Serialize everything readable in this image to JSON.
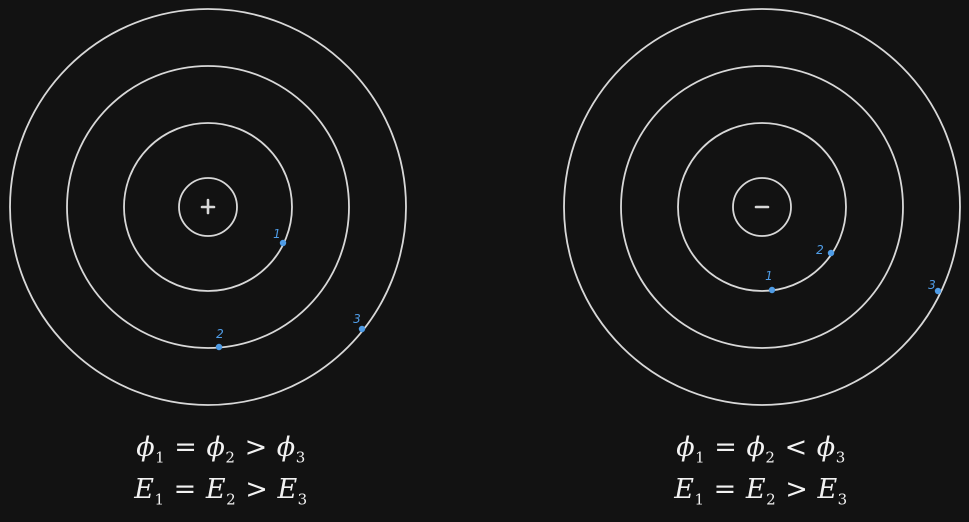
{
  "colors": {
    "background": "#121212",
    "circle": "#d8d8d8",
    "point": "#4f9ce6",
    "text": "#f2f2f2"
  },
  "left_panel": {
    "charge_sign": "+",
    "points": [
      {
        "label": "1"
      },
      {
        "label": "2"
      },
      {
        "label": "3"
      }
    ],
    "equations": {
      "potential": {
        "a": "ϕ",
        "a_sub": "1",
        "op1": "=",
        "b": "ϕ",
        "b_sub": "2",
        "op2": ">",
        "c": "ϕ",
        "c_sub": "3"
      },
      "field": {
        "a": "E",
        "a_sub": "1",
        "op1": "=",
        "b": "E",
        "b_sub": "2",
        "op2": ">",
        "c": "E",
        "c_sub": "3"
      }
    }
  },
  "right_panel": {
    "charge_sign": "−",
    "points": [
      {
        "label": "1"
      },
      {
        "label": "2"
      },
      {
        "label": "3"
      }
    ],
    "equations": {
      "potential": {
        "a": "ϕ",
        "a_sub": "1",
        "op1": "=",
        "b": "ϕ",
        "b_sub": "2",
        "op2": "<",
        "c": "ϕ",
        "c_sub": "3"
      },
      "field": {
        "a": "E",
        "a_sub": "1",
        "op1": "=",
        "b": "E",
        "b_sub": "2",
        "op2": ">",
        "c": "E",
        "c_sub": "3"
      }
    }
  }
}
